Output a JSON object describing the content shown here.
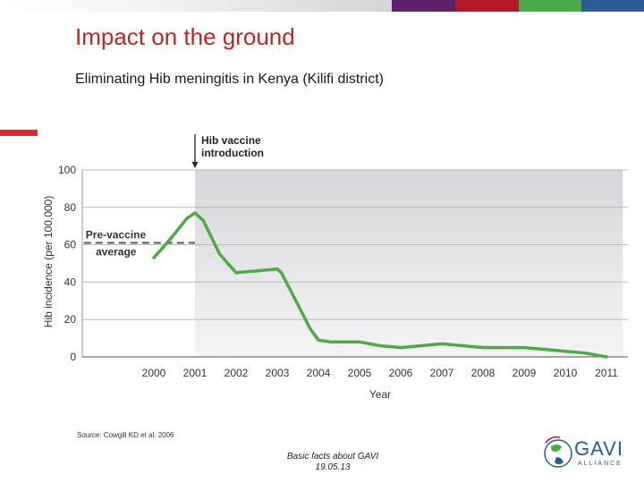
{
  "slide": {
    "title": "Impact on the ground",
    "subtitle": "Eliminating Hib meningitis in Kenya (Kilifi district)",
    "source": "Source: Cowgill KD et al. 2006",
    "footer_line1": "Basic facts about GAVI",
    "footer_line2": "19.05.13"
  },
  "top_bar_colors": [
    "#5e2069",
    "#b5172b",
    "#4daa46",
    "#2b5c93"
  ],
  "accent_color": "#e0262b",
  "logo": {
    "name": "GAVI",
    "sub": "ALLIANCE",
    "color": "#2a5e8f",
    "icon": "gavi-globe-logo-icon"
  },
  "chart_data": {
    "type": "line",
    "xlabel": "Year",
    "ylabel": "Hib incidence (per 100,000)",
    "xlim": [
      2000,
      2011
    ],
    "ylim": [
      0,
      100
    ],
    "yticks": [
      0,
      20,
      40,
      60,
      80,
      100
    ],
    "xticks": [
      2000,
      2001,
      2002,
      2003,
      2004,
      2005,
      2006,
      2007,
      2008,
      2009,
      2010,
      2011
    ],
    "grid": true,
    "series": [
      {
        "color": "#4daa46",
        "points": [
          [
            2000.0,
            53
          ],
          [
            2000.4,
            63
          ],
          [
            2000.8,
            74
          ],
          [
            2001.0,
            77
          ],
          [
            2001.2,
            73
          ],
          [
            2001.6,
            55
          ],
          [
            2002.0,
            45
          ],
          [
            2002.5,
            46
          ],
          [
            2003.0,
            47
          ],
          [
            2003.1,
            45
          ],
          [
            2003.5,
            28
          ],
          [
            2003.8,
            15
          ],
          [
            2004.0,
            9
          ],
          [
            2004.3,
            8
          ],
          [
            2005.0,
            8
          ],
          [
            2005.5,
            6
          ],
          [
            2006.0,
            5
          ],
          [
            2006.5,
            6
          ],
          [
            2007.0,
            7
          ],
          [
            2007.5,
            6
          ],
          [
            2008.0,
            5
          ],
          [
            2009.0,
            5
          ],
          [
            2009.5,
            4
          ],
          [
            2010.0,
            3
          ],
          [
            2010.5,
            2
          ],
          [
            2011.0,
            0
          ]
        ]
      }
    ],
    "reference_line": {
      "label_line1": "Pre-vaccine",
      "label_line2": "average",
      "value": 61,
      "x_range": [
        1998.3,
        2001
      ]
    },
    "annotation": {
      "label_line1": "Hib vaccine",
      "label_line2": "introduction",
      "x": 2001
    },
    "shaded_region": {
      "from": 2001,
      "to": 2011.4
    }
  }
}
